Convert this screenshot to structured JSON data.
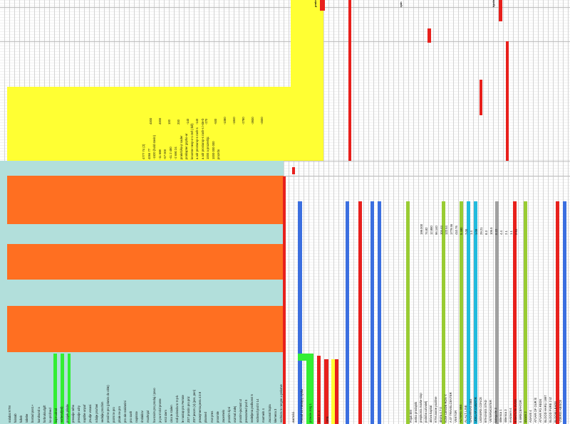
{
  "sheet": {
    "top_labels": [
      "prakriti",
      "rpin",
      "hjrdie"
    ],
    "yellow_lines": [
      "4777 74 (2)",
      "4066 77",
      "-1520 (hold sterin)",
      "-11 688",
      "-57 000",
      "-41 2 480",
      "-2 690 24",
      "prakriti/ko-jr sader",
      "proklapter gnpho-ar",
      "kroonter nesp-z-1-2ef (-bill)",
      "a adr prostarop-s rash-s",
      "a adr prostarop-s rash-s t-sle-b",
      "1000 a prozrelitjc",
      "1000 000 000",
      "prozrdo"
    ],
    "yellow_numbers": [
      "4000",
      "4000",
      "100",
      "200",
      "-140",
      "-140",
      "-270",
      "-500",
      "-1080",
      "-1840",
      "-2780",
      "-3930",
      "-4500"
    ],
    "left_labels": [
      "nalabat KTM",
      "fulatab",
      "fulleb",
      "taliebe",
      "bostad pos1+",
      "kundsund a",
      "forbruk/udgift",
      "ko-prid/ved",
      "kopr-udrod",
      "vorbetuf(ed)",
      "prosjek plinde",
      "presalje tafno",
      "presalje udry",
      "naptibe unpuf",
      "jmudje vosasi",
      "ndalje pro/tnei",
      "vedalje prochim",
      "prosil te pro (platvis do oble)",
      "poimi te pro",
      "pitale ne pro",
      "pro ale nakiratini",
      "pro sanh",
      "raqiniste",
      "rindaklov",
      "mozhnjal",
      "ha-tosim pro prodaj / povo",
      "jo pa tri-dol pronte",
      "vrsti stem",
      "cina te stulen",
      "rodi polvoda to tr-p-k",
      "le nastap pro Ferrate",
      "ZST prostin pro priz",
      "ZST jesom (v) (pos, pen)",
      "prezejmenta pera 4:3 8",
      "planned",
      "mot pres",
      "prosmile",
      "zacemelo",
      "prostim kj-vi",
      "oszmal zalej",
      "prostim-jacnast ut",
      "prevzamed pod 5",
      "nedeljena podkonst 5",
      "vodovod pod 0 14",
      "marmeln 4",
      "zaconal bcpia",
      "klemena 3",
      "vodnicta to rangne u pekatve"
    ],
    "right_labels": [
      "Frijuk BM",
      "avsko prodajnik",
      "preipkonta marke-stop",
      "podoba uzivatelj",
      "aktiva kapital",
      "KTM zasne pozitive",
      "akvira 4 7 0",
      "KOM CENDE RON Y.",
      "A 07 TRAVELCENTER",
      "VEKTOR",
      "ALTERS SBS",
      "AI, ALT. LINE",
      "GAGARNAS SBS",
      "UDELAR EMERTR",
      "LEDNERS CONCE",
      "BTAGNES STAD",
      "VETERMOSTER",
      "kategorie 3",
      "sklenica 1",
      "sklenica 3",
      "reviznem 4",
      "B BATNTE SVOS",
      "E BRECEFATOR",
      "stvami 2",
      "AGAVE 4",
      "ATVAR OF OUR lit",
      "ATVAR PG REDS",
      "BLOOD HARLI 1997",
      "BLOOD PURE 2 IZ",
      "BLOOM LEADS",
      "VOERIS ABISCE"
    ],
    "right_numbers": [
      "199.000",
      "74.82",
      "12.880",
      "96.140",
      "104.44",
      "122.54",
      "1779.56",
      "410.76",
      "5.480",
      "7.00",
      "1.4",
      "1.00",
      "29.21",
      "8.3",
      "106.5",
      "0.22",
      "4.4",
      "2.1",
      "1.1",
      "2.61"
    ],
    "mid_labels": [
      "wartości",
      "Ponad 10 miesięcy zysku",
      "przeciw zorg 1",
      "stan 3 i 4",
      "DPB"
    ]
  },
  "colors": {
    "cyan": "#b2dfdb",
    "orange": "#ff6f21",
    "yellow": "#ffff33",
    "green": "#33ee33",
    "red": "#e8201c",
    "blue": "#3b6fe0",
    "lime": "#99cc33",
    "teal": "#22bbdd",
    "gray": "#a0a0a0"
  }
}
